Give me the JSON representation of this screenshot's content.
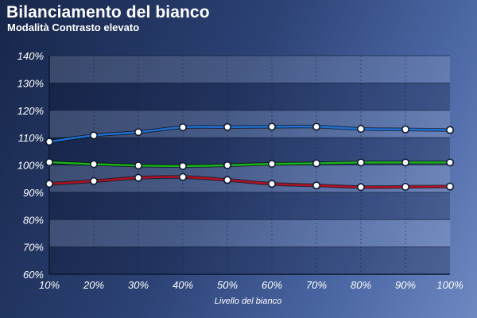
{
  "chart_data": {
    "type": "line",
    "title": "Bilanciamento del bianco",
    "subtitle": "Modalità Contrasto elevato",
    "xlabel": "Livello del bianco",
    "ylabel": "",
    "categories": [
      "10%",
      "20%",
      "30%",
      "40%",
      "50%",
      "60%",
      "70%",
      "80%",
      "90%",
      "100%"
    ],
    "yticks": [
      "60%",
      "70%",
      "80%",
      "90%",
      "100%",
      "110%",
      "120%",
      "130%",
      "140%"
    ],
    "ylim": [
      60,
      140
    ],
    "grid": true,
    "series": [
      {
        "color": "#1e6fd0",
        "values": [
          108.5,
          110.8,
          112,
          113.8,
          113.9,
          114,
          114,
          113.2,
          113,
          112.8
        ]
      },
      {
        "color": "#18b418",
        "values": [
          101,
          100.3,
          99.8,
          99.6,
          99.9,
          100.4,
          100.6,
          100.9,
          100.9,
          100.9
        ]
      },
      {
        "color": "#b01020",
        "values": [
          93.1,
          94.1,
          95.3,
          95.6,
          94.5,
          93.1,
          92.5,
          91.9,
          92,
          92.1
        ]
      }
    ]
  }
}
